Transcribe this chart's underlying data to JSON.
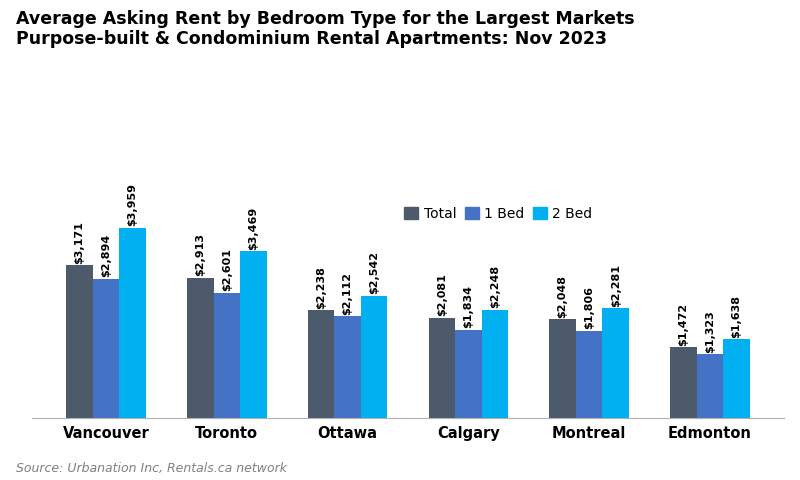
{
  "title_line1": "Average Asking Rent by Bedroom Type for the Largest Markets",
  "title_line2": "Purpose-built & Condominium Rental Apartments: Nov 2023",
  "categories": [
    "Vancouver",
    "Toronto",
    "Ottawa",
    "Calgary",
    "Montreal",
    "Edmonton"
  ],
  "series": {
    "Total": [
      3171,
      2913,
      2238,
      2081,
      2048,
      1472
    ],
    "1 Bed": [
      2894,
      2601,
      2112,
      1834,
      1806,
      1323
    ],
    "2 Bed": [
      3959,
      3469,
      2542,
      2248,
      2281,
      1638
    ]
  },
  "colors": {
    "Total": "#4d5a6b",
    "1 Bed": "#4472c4",
    "2 Bed": "#00b0f0"
  },
  "source": "Source: Urbanation Inc, Rentals.ca network",
  "ylim": [
    0,
    4700
  ],
  "bar_width": 0.22,
  "background_color": "#ffffff",
  "title_fontsize": 12.5,
  "label_fontsize": 8.0,
  "legend_fontsize": 10,
  "tick_fontsize": 10.5,
  "source_fontsize": 9
}
